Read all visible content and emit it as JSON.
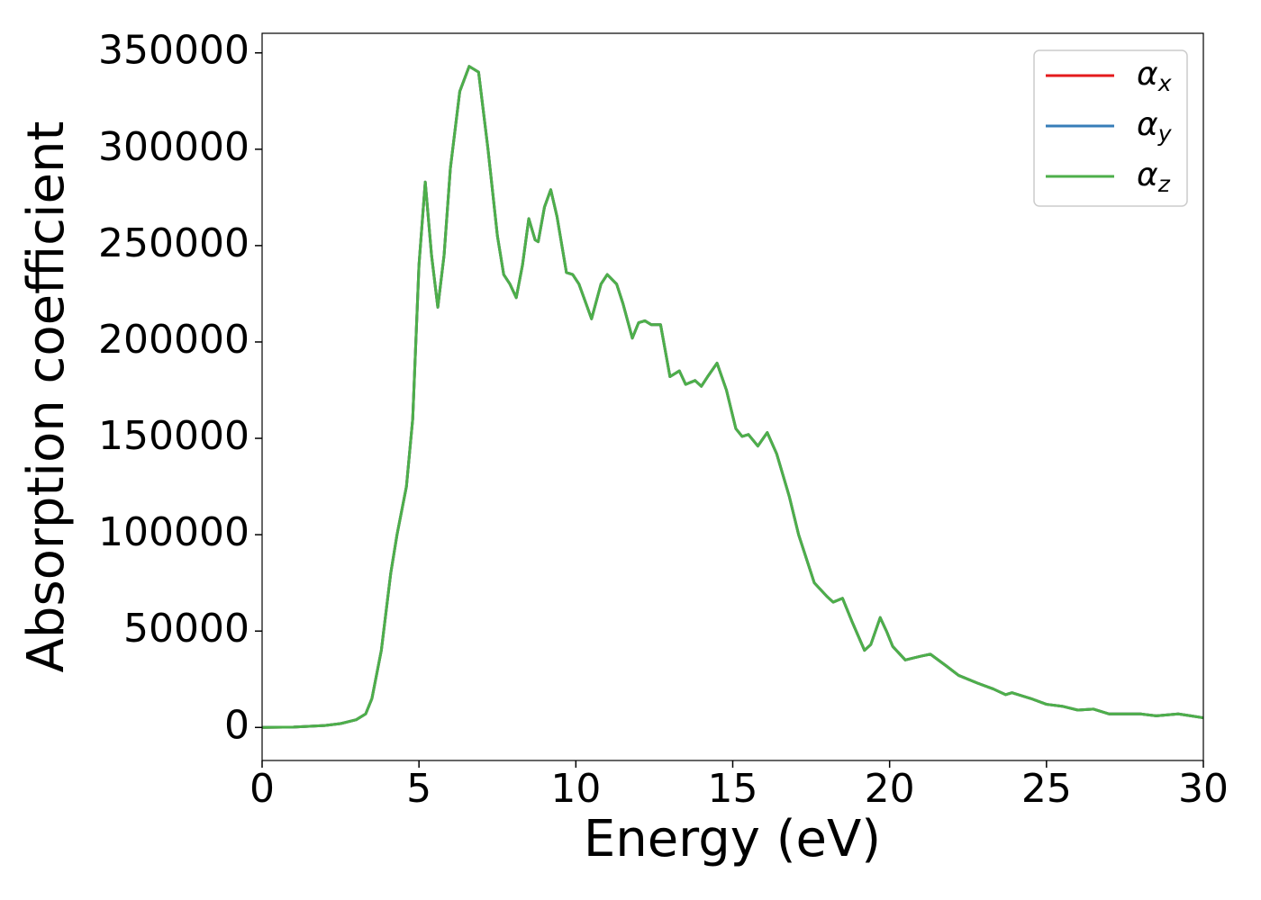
{
  "chart_data": {
    "type": "line",
    "xlabel": "Energy (eV)",
    "ylabel": "Absorption coefficient",
    "x": [
      0,
      1,
      2,
      2.5,
      3,
      3.3,
      3.5,
      3.8,
      4.1,
      4.3,
      4.6,
      4.8,
      5.0,
      5.2,
      5.4,
      5.6,
      5.8,
      6.0,
      6.3,
      6.6,
      6.9,
      7.2,
      7.5,
      7.7,
      7.9,
      8.1,
      8.3,
      8.5,
      8.7,
      8.8,
      9.0,
      9.2,
      9.4,
      9.7,
      9.9,
      10.1,
      10.5,
      10.8,
      11.0,
      11.3,
      11.5,
      11.8,
      12.0,
      12.2,
      12.4,
      12.7,
      13.0,
      13.3,
      13.5,
      13.8,
      14.0,
      14.2,
      14.5,
      14.8,
      15.1,
      15.3,
      15.5,
      15.8,
      16.1,
      16.4,
      16.8,
      17.1,
      17.6,
      18.0,
      18.2,
      18.5,
      18.8,
      19.2,
      19.4,
      19.7,
      19.9,
      20.1,
      20.5,
      21.0,
      21.3,
      21.8,
      22.2,
      22.8,
      23.3,
      23.7,
      23.9,
      24.5,
      25.0,
      25.5,
      26.0,
      26.5,
      27.0,
      27.5,
      28.0,
      28.5,
      29.2,
      29.6,
      30.0
    ],
    "series": [
      {
        "name": "αx",
        "color": "#e41a1c",
        "values": [
          0,
          200,
          1000,
          2000,
          4000,
          7000,
          15000,
          40000,
          80000,
          100000,
          125000,
          160000,
          240000,
          283000,
          245000,
          218000,
          245000,
          290000,
          330000,
          343000,
          340000,
          300000,
          255000,
          235000,
          230000,
          223000,
          240000,
          264000,
          253000,
          252000,
          270000,
          279000,
          265000,
          236000,
          235000,
          230000,
          212000,
          230000,
          235000,
          230000,
          220000,
          202000,
          210000,
          211000,
          209000,
          209000,
          182000,
          185000,
          178000,
          180000,
          177000,
          182000,
          189000,
          175000,
          155000,
          151000,
          152000,
          146000,
          153000,
          142000,
          120000,
          100000,
          75000,
          68000,
          65000,
          67000,
          55000,
          40000,
          43000,
          57000,
          50000,
          42000,
          35000,
          37000,
          38000,
          32000,
          27000,
          23000,
          20000,
          17000,
          18000,
          15000,
          12000,
          11000,
          9000,
          9500,
          7000,
          7000,
          7000,
          6000,
          7000,
          6000,
          5000
        ]
      },
      {
        "name": "αy",
        "color": "#377eb8",
        "values": [
          0,
          200,
          1000,
          2000,
          4000,
          7000,
          15000,
          40000,
          80000,
          100000,
          125000,
          160000,
          240000,
          283000,
          245000,
          218000,
          245000,
          290000,
          330000,
          343000,
          340000,
          300000,
          255000,
          235000,
          230000,
          223000,
          240000,
          264000,
          253000,
          252000,
          270000,
          279000,
          265000,
          236000,
          235000,
          230000,
          212000,
          230000,
          235000,
          230000,
          220000,
          202000,
          210000,
          211000,
          209000,
          209000,
          182000,
          185000,
          178000,
          180000,
          177000,
          182000,
          189000,
          175000,
          155000,
          151000,
          152000,
          146000,
          153000,
          142000,
          120000,
          100000,
          75000,
          68000,
          65000,
          67000,
          55000,
          40000,
          43000,
          57000,
          50000,
          42000,
          35000,
          37000,
          38000,
          32000,
          27000,
          23000,
          20000,
          17000,
          18000,
          15000,
          12000,
          11000,
          9000,
          9500,
          7000,
          7000,
          7000,
          6000,
          7000,
          6000,
          5000
        ]
      },
      {
        "name": "αz",
        "color": "#4daf4a",
        "values": [
          0,
          200,
          1000,
          2000,
          4000,
          7000,
          15000,
          40000,
          80000,
          100000,
          125000,
          160000,
          240000,
          283000,
          245000,
          218000,
          245000,
          290000,
          330000,
          343000,
          340000,
          300000,
          255000,
          235000,
          230000,
          223000,
          240000,
          264000,
          253000,
          252000,
          270000,
          279000,
          265000,
          236000,
          235000,
          230000,
          212000,
          230000,
          235000,
          230000,
          220000,
          202000,
          210000,
          211000,
          209000,
          209000,
          182000,
          185000,
          178000,
          180000,
          177000,
          182000,
          189000,
          175000,
          155000,
          151000,
          152000,
          146000,
          153000,
          142000,
          120000,
          100000,
          75000,
          68000,
          65000,
          67000,
          55000,
          40000,
          43000,
          57000,
          50000,
          42000,
          35000,
          37000,
          38000,
          32000,
          27000,
          23000,
          20000,
          17000,
          18000,
          15000,
          12000,
          11000,
          9000,
          9500,
          7000,
          7000,
          7000,
          6000,
          7000,
          6000,
          5000
        ]
      }
    ],
    "xlim": [
      0,
      30
    ],
    "xticks": [
      0,
      5,
      10,
      15,
      20,
      25,
      30
    ],
    "ylim": [
      -17150,
      360150
    ],
    "yticks": [
      0,
      50000,
      100000,
      150000,
      200000,
      250000,
      300000,
      350000
    ],
    "grid": false,
    "legend": "upper right"
  }
}
